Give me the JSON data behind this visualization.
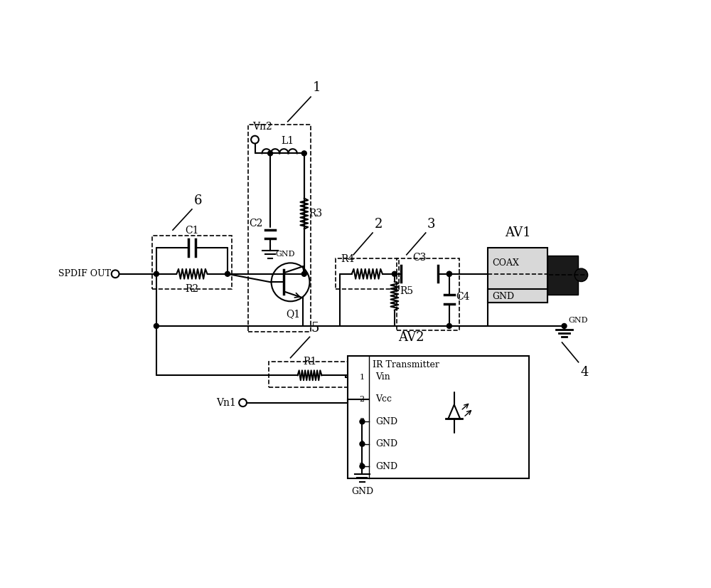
{
  "bg_color": "#ffffff",
  "line_color": "#000000",
  "labels": {
    "spdif_out": "SPDIF OUT",
    "vn2": "Vn2",
    "vn1": "Vn1",
    "l1": "L1",
    "c1": "C1",
    "c2": "C2",
    "c3": "C3",
    "c4": "C4",
    "r2": "R2",
    "r3": "R3",
    "r4": "R4",
    "r5": "R5",
    "r1": "R1",
    "q1": "Q1",
    "gnd": "GND",
    "coax": "COAX",
    "av1": "AV1",
    "av2": "AV2",
    "ir": "IR Transmitter",
    "vin": "Vin",
    "vcc": "Vcc"
  }
}
